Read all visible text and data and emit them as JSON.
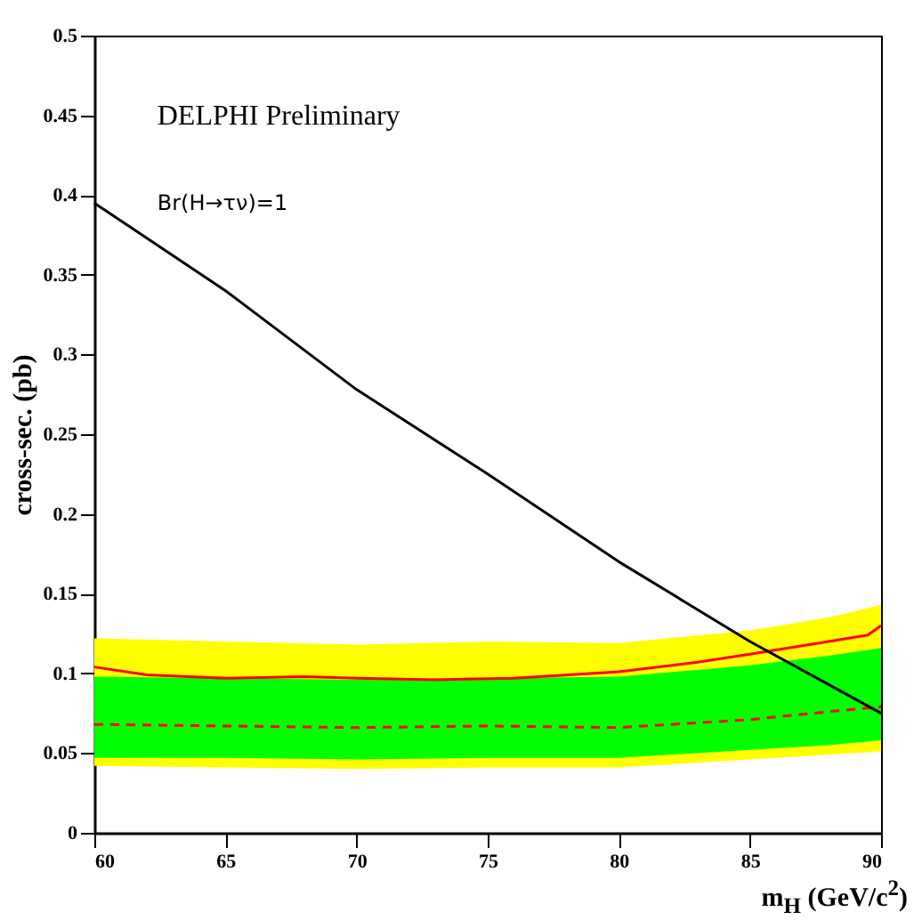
{
  "chart_data": {
    "type": "line",
    "xlabel": "m$_{H}$ (GeV/c$^{2}$)",
    "ylabel": "cross-sec. (pb)",
    "annotations": [
      "DELPHI Preliminary",
      "Br(H→τν)=1"
    ],
    "xlim": [
      60,
      90
    ],
    "ylim": [
      0,
      0.5
    ],
    "xticks": [
      60,
      65,
      70,
      75,
      80,
      85,
      90
    ],
    "yticks": [
      0,
      0.05,
      0.1,
      0.15,
      0.2,
      0.25,
      0.3,
      0.35,
      0.4,
      0.45,
      0.5
    ],
    "series": [
      {
        "color": "#ffff00",
        "x": [
          60,
          65,
          70,
          75,
          80,
          85,
          88,
          90
        ],
        "values": [
          null,
          null,
          null,
          null,
          null,
          null,
          null,
          null
        ],
        "lower": [
          0.042,
          0.041,
          0.04,
          0.041,
          0.041,
          0.046,
          0.049,
          0.051
        ],
        "upper": [
          0.122,
          0.12,
          0.118,
          0.12,
          0.119,
          0.127,
          0.135,
          0.143
        ]
      },
      {
        "color": "#00ff00",
        "x": [
          60,
          65,
          70,
          75,
          80,
          85,
          88,
          90
        ],
        "values": [
          null,
          null,
          null,
          null,
          null,
          null,
          null,
          null
        ],
        "lower": [
          0.047,
          0.047,
          0.046,
          0.047,
          0.047,
          0.052,
          0.055,
          0.058
        ],
        "upper": [
          0.098,
          0.097,
          0.096,
          0.097,
          0.098,
          0.105,
          0.111,
          0.116
        ]
      },
      {
        "color": "#ff0000",
        "line_style": "dashed",
        "x": [
          60,
          65,
          70,
          75,
          80,
          85,
          88,
          90
        ],
        "values": [
          0.068,
          0.067,
          0.066,
          0.067,
          0.066,
          0.071,
          0.076,
          0.079
        ]
      },
      {
        "color": "#ff0000",
        "line_style": "solid",
        "x": [
          60,
          62,
          65,
          68,
          70,
          73,
          76,
          80,
          83,
          85,
          88,
          89.5,
          90
        ],
        "values": [
          0.104,
          0.099,
          0.097,
          0.098,
          0.097,
          0.096,
          0.097,
          0.101,
          0.107,
          0.112,
          0.12,
          0.124,
          0.13
        ]
      },
      {
        "color": "#000000",
        "line_style": "solid",
        "x": [
          60,
          65,
          70,
          75,
          80,
          85,
          90
        ],
        "values": [
          0.395,
          0.34,
          0.278,
          0.225,
          0.17,
          0.12,
          0.075
        ]
      }
    ]
  }
}
